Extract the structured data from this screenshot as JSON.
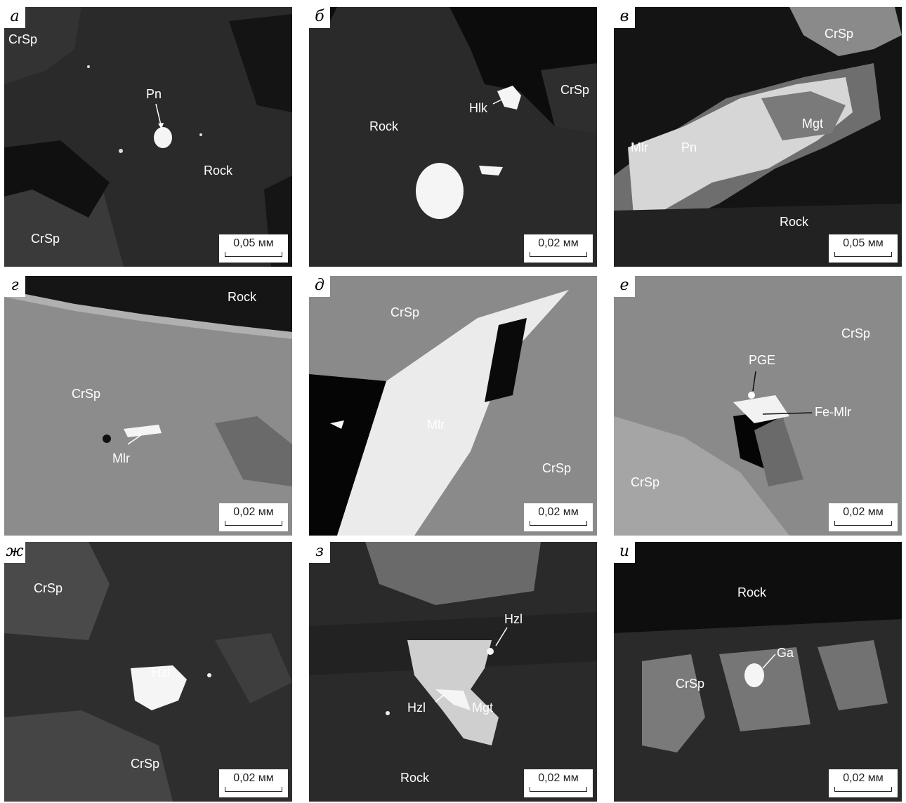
{
  "panels": [
    {
      "id": "a",
      "letter": "а",
      "labels": [
        "CrSp",
        "Pn",
        "Rock",
        "CrSp"
      ],
      "scale": "0,05 мм"
    },
    {
      "id": "b",
      "letter": "б",
      "labels": [
        "Hlk",
        "CrSp",
        "Rock"
      ],
      "scale": "0,02 мм"
    },
    {
      "id": "v",
      "letter": "в",
      "labels": [
        "CrSp",
        "Mgt",
        "Mlr",
        "Pn",
        "Rock"
      ],
      "scale": "0,05 мм"
    },
    {
      "id": "g",
      "letter": "г",
      "labels": [
        "Rock",
        "CrSp",
        "Mlr"
      ],
      "scale": "0,02 мм"
    },
    {
      "id": "d",
      "letter": "д",
      "labels": [
        "CrSp",
        "Mlr",
        "CrSp"
      ],
      "scale": "0,02 мм"
    },
    {
      "id": "e",
      "letter": "е",
      "labels": [
        "CrSp",
        "PGE",
        "Fe-Mlr",
        "CrSp"
      ],
      "scale": "0,02 мм"
    },
    {
      "id": "zh",
      "letter": "ж",
      "labels": [
        "CrSp",
        "Hzl",
        "CrSp"
      ],
      "scale": "0,02 мм"
    },
    {
      "id": "z",
      "letter": "з",
      "labels": [
        "Hzl",
        "Hzl",
        "Mgt",
        "Rock"
      ],
      "scale": "0,02 мм"
    },
    {
      "id": "i",
      "letter": "и",
      "labels": [
        "Rock",
        "Ga",
        "CrSp"
      ],
      "scale": "0,02 мм"
    }
  ],
  "colors": {
    "rock": "#2b2b2b",
    "crsp": "#8c8c8c",
    "mineral": "#f2f2f2",
    "void": "#050505"
  }
}
